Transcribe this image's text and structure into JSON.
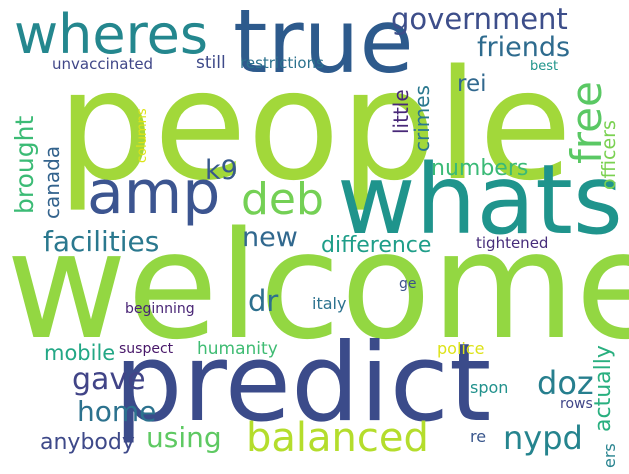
{
  "word_cloud": {
    "words": [
      {
        "text": "people",
        "color": "#a2d83a"
      },
      {
        "text": "welcome",
        "color": "#93d742"
      },
      {
        "text": "predict",
        "color": "#3b4b8a"
      },
      {
        "text": "whats",
        "color": "#1f948c"
      },
      {
        "text": "true",
        "color": "#2d5a8c"
      },
      {
        "text": "wheres",
        "color": "#24878e"
      },
      {
        "text": "amp",
        "color": "#3c5590"
      },
      {
        "text": "balanced",
        "color": "#b4dd2c"
      },
      {
        "text": "government",
        "color": "#3d4e8a"
      },
      {
        "text": "friends",
        "color": "#2e6b8e"
      },
      {
        "text": "free",
        "color": "#5ac864"
      },
      {
        "text": "deb",
        "color": "#74d055"
      },
      {
        "text": "facilities",
        "color": "#2a788e"
      },
      {
        "text": "k9",
        "color": "#37598c"
      },
      {
        "text": "brought",
        "color": "#3bbb75"
      },
      {
        "text": "canada",
        "color": "#33638d"
      },
      {
        "text": "new",
        "color": "#31688e"
      },
      {
        "text": "numbers",
        "color": "#3aba76"
      },
      {
        "text": "difference",
        "color": "#1f9e89"
      },
      {
        "text": "little",
        "color": "#482878"
      },
      {
        "text": "crimes",
        "color": "#2a788e"
      },
      {
        "text": "officers",
        "color": "#7ad151"
      },
      {
        "text": "rei",
        "color": "#31688e"
      },
      {
        "text": "unvaccinated",
        "color": "#404788"
      },
      {
        "text": "still",
        "color": "#3e4a89"
      },
      {
        "text": "restrictions",
        "color": "#2c728e"
      },
      {
        "text": "best",
        "color": "#1f958b"
      },
      {
        "text": "columns",
        "color": "#dde318"
      },
      {
        "text": "tightened",
        "color": "#472d7b"
      },
      {
        "text": "dr",
        "color": "#2d708e"
      },
      {
        "text": "italy",
        "color": "#2c728e"
      },
      {
        "text": "ge",
        "color": "#3b528b"
      },
      {
        "text": "beginning",
        "color": "#482475"
      },
      {
        "text": "mobile",
        "color": "#22a785"
      },
      {
        "text": "gave",
        "color": "#414487"
      },
      {
        "text": "humanity",
        "color": "#3fbc73"
      },
      {
        "text": "suspect",
        "color": "#481769"
      },
      {
        "text": "police",
        "color": "#dde318"
      },
      {
        "text": "doz",
        "color": "#277f8e"
      },
      {
        "text": "actually",
        "color": "#29af7f"
      },
      {
        "text": "home",
        "color": "#2c728e"
      },
      {
        "text": "using",
        "color": "#5ec962"
      },
      {
        "text": "nypd",
        "color": "#25848e"
      },
      {
        "text": "anybody",
        "color": "#3e4989"
      },
      {
        "text": "spon",
        "color": "#21918c"
      },
      {
        "text": "rows",
        "color": "#404688"
      },
      {
        "text": "re",
        "color": "#39568c"
      },
      {
        "text": "ers",
        "color": "#26828e"
      }
    ]
  }
}
